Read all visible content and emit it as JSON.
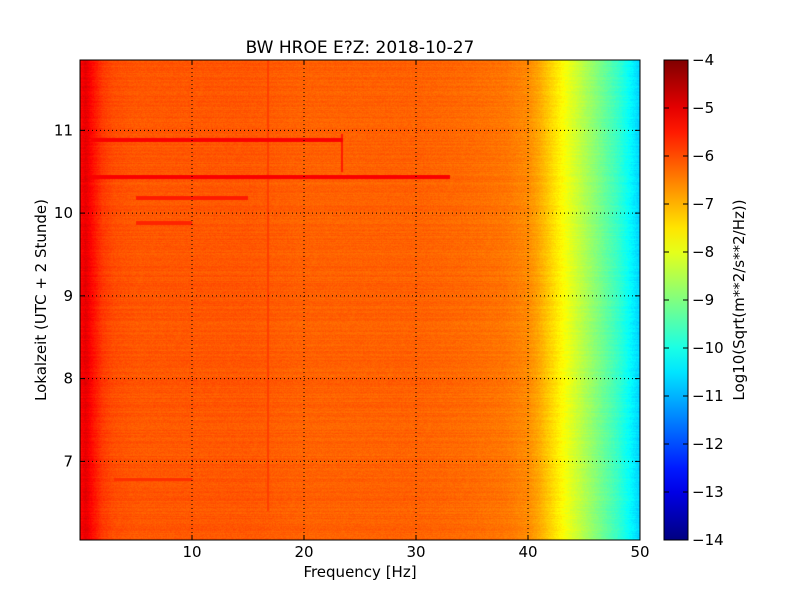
{
  "chart_data": {
    "type": "heatmap",
    "title": "BW HROE E?Z: 2018-10-27",
    "xlabel": "Frequency [Hz]",
    "ylabel": "Lokalzeit (UTC + 2 Stunde)",
    "xlim": [
      0,
      50
    ],
    "ylim": [
      11.85,
      6.05
    ],
    "y_inverted": true,
    "x_ticks": [
      10,
      20,
      30,
      40,
      50
    ],
    "y_ticks": [
      7,
      8,
      9,
      10,
      11
    ],
    "grid": true,
    "colormap": "jet",
    "colorbar": {
      "label": "Log10(Sqrt(m**2/s**2/Hz))",
      "min": -14,
      "max": -4,
      "ticks": [
        -4,
        -5,
        -6,
        -7,
        -8,
        -9,
        -10,
        -11,
        -12,
        -13,
        -14
      ]
    },
    "frequency_profile": {
      "x": [
        0,
        0.5,
        1,
        2,
        3,
        5,
        8,
        10,
        15,
        20,
        25,
        30,
        35,
        38,
        40,
        41,
        42,
        43,
        44,
        45,
        46,
        47,
        48,
        49,
        50
      ],
      "values": [
        -5.3,
        -5.0,
        -5.3,
        -5.8,
        -6.0,
        -6.1,
        -6.1,
        -6.1,
        -6.1,
        -6.2,
        -6.2,
        -6.2,
        -6.3,
        -6.4,
        -6.6,
        -6.9,
        -7.3,
        -7.7,
        -8.1,
        -8.5,
        -8.9,
        -9.3,
        -9.7,
        -10.2,
        -10.7
      ]
    },
    "features": [
      {
        "type": "horizontal_line",
        "time": 10.44,
        "x_range": [
          0.5,
          33
        ],
        "value": -5.2
      },
      {
        "type": "horizontal_line",
        "time": 10.88,
        "x_range": [
          1,
          23.5
        ],
        "value": -5.2
      },
      {
        "type": "horizontal_line",
        "time": 10.18,
        "x_range": [
          5,
          15
        ],
        "value": -5.5
      },
      {
        "type": "horizontal_line",
        "time": 9.88,
        "x_range": [
          5,
          10
        ],
        "value": -5.6
      },
      {
        "type": "horizontal_line",
        "time": 6.78,
        "x_range": [
          3,
          10
        ],
        "value": -5.7
      },
      {
        "type": "vertical_line",
        "freq": 23.4,
        "t_range": [
          10.5,
          10.95
        ],
        "value": -5.5
      },
      {
        "type": "vertical_line",
        "freq": 16.8,
        "t_range": [
          6.4,
          11.85
        ],
        "value": -5.85
      }
    ]
  }
}
